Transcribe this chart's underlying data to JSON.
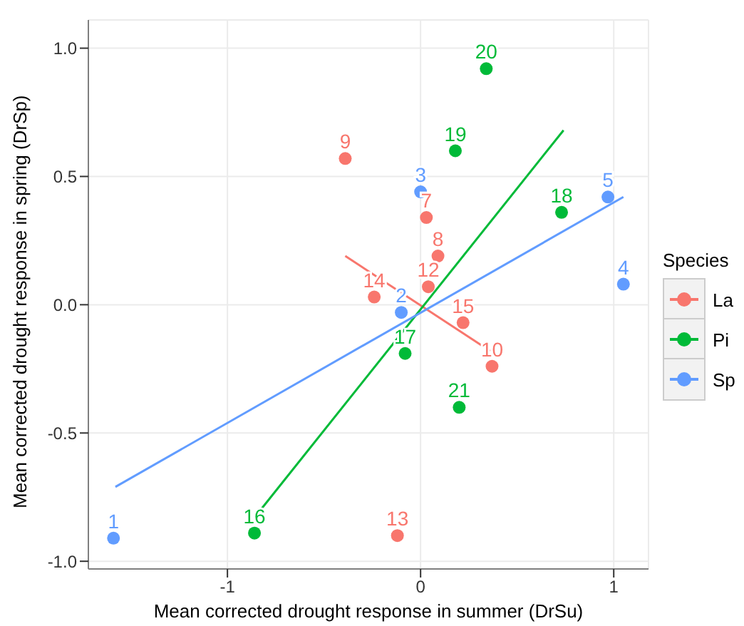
{
  "chart_data": {
    "type": "scatter",
    "xlabel": "Mean corrected drought response in summer (DrSu)",
    "ylabel": "Mean corrected drought response in spring (DrSp)",
    "legend_title": "Species",
    "legend": "right",
    "grid": true,
    "marker": "circle",
    "xlim": [
      -1.72,
      1.18
    ],
    "xticks": [
      -1,
      0,
      1
    ],
    "ylim": [
      -1.03,
      1.11
    ],
    "yticks": [
      {
        "value": -1.0,
        "label": "-1.0"
      },
      -0.5,
      {
        "value": 0.0,
        "label": "0.0"
      },
      0.5,
      {
        "value": 1.0,
        "label": "1.0"
      }
    ],
    "series": [
      {
        "name": "La",
        "color": "#f8766d",
        "x": [
          -0.39,
          0.03,
          0.09,
          0.04,
          -0.24,
          0.22,
          0.37,
          -0.12
        ],
        "values": [
          0.57,
          0.34,
          0.19,
          0.07,
          0.03,
          -0.07,
          -0.24,
          -0.9
        ]
      },
      {
        "name": "Pi",
        "color": "#00ba38",
        "x": [
          0.34,
          0.18,
          0.73,
          -0.08,
          0.2,
          -0.86
        ],
        "values": [
          0.92,
          0.6,
          0.36,
          -0.19,
          -0.4,
          -0.89
        ]
      },
      {
        "name": "Sp",
        "color": "#619cff",
        "x": [
          0.0,
          0.97,
          1.05,
          -0.1,
          -1.59
        ],
        "values": [
          0.44,
          0.42,
          0.08,
          -0.03,
          -0.91
        ]
      },
      {
        "type": "line",
        "marker": "none",
        "color": "#f8766d",
        "x": [
          -0.39,
          0.36
        ],
        "values": [
          0.19,
          -0.18
        ]
      },
      {
        "type": "line",
        "marker": "none",
        "color": "#00ba38",
        "x": [
          -0.85,
          0.74
        ],
        "values": [
          -0.82,
          0.68
        ]
      },
      {
        "type": "line",
        "marker": "none",
        "color": "#619cff",
        "x": [
          -1.58,
          1.05
        ],
        "values": [
          -0.71,
          0.42
        ]
      }
    ],
    "annotations": [
      {
        "text": "9",
        "x": -0.39,
        "y": 0.57
      },
      {
        "text": "7",
        "x": 0.03,
        "y": 0.34
      },
      {
        "text": "8",
        "x": 0.09,
        "y": 0.19
      },
      {
        "text": "12",
        "x": 0.04,
        "y": 0.07
      },
      {
        "text": "14",
        "x": -0.24,
        "y": 0.03
      },
      {
        "text": "15",
        "x": 0.22,
        "y": -0.07
      },
      {
        "text": "10",
        "x": 0.37,
        "y": -0.24
      },
      {
        "text": "13",
        "x": -0.12,
        "y": -0.9
      },
      {
        "text": "20",
        "x": 0.34,
        "y": 0.92
      },
      {
        "text": "19",
        "x": 0.18,
        "y": 0.6
      },
      {
        "text": "18",
        "x": 0.73,
        "y": 0.36
      },
      {
        "text": "17",
        "x": -0.08,
        "y": -0.19
      },
      {
        "text": "21",
        "x": 0.2,
        "y": -0.4
      },
      {
        "text": "16",
        "x": -0.86,
        "y": -0.89
      },
      {
        "text": "3",
        "x": 0.0,
        "y": 0.44
      },
      {
        "text": "5",
        "x": 0.97,
        "y": 0.42
      },
      {
        "text": "4",
        "x": 1.05,
        "y": 0.08
      },
      {
        "text": "2",
        "x": -0.1,
        "y": -0.03
      },
      {
        "text": "1",
        "x": -1.59,
        "y": -0.91
      }
    ]
  }
}
